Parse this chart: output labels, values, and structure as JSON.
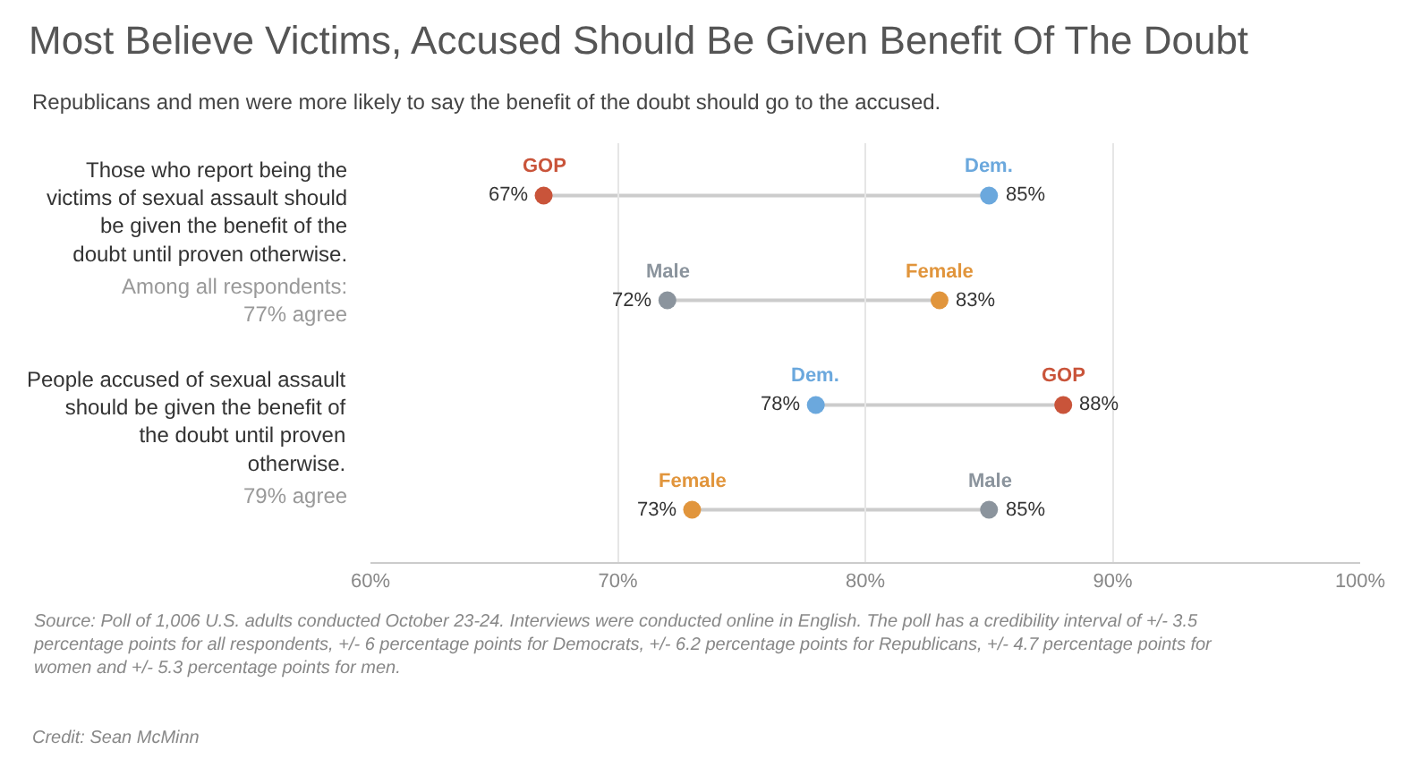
{
  "chart_data": {
    "type": "scatter",
    "title": "Most Believe Victims, Accused Should Be Given Benefit Of The Doubt",
    "subtitle": "Republicans and men were more likely to say the benefit of the doubt should go to the accused.",
    "categories": [
      null,
      null,
      null,
      null
    ],
    "orientation": "horizontal",
    "series": [
      {
        "name": "GOP",
        "color": "#c9543a",
        "values": [
          67,
          null,
          88,
          null
        ],
        "value_labels": [
          "67%",
          null,
          "88%",
          null
        ]
      },
      {
        "name": "Dem.",
        "color": "#6ba8dd",
        "values": [
          85,
          null,
          78,
          null
        ],
        "value_labels": [
          "85%",
          null,
          "78%",
          null
        ]
      },
      {
        "name": "Male",
        "color": "#8b949d",
        "values": [
          null,
          72,
          null,
          85
        ],
        "value_labels": [
          null,
          "72%",
          null,
          "85%"
        ]
      },
      {
        "name": "Female",
        "color": "#e1953c",
        "values": [
          null,
          83,
          null,
          73
        ],
        "value_labels": [
          null,
          "83%",
          null,
          "73%"
        ]
      }
    ],
    "xlim": [
      60,
      100
    ],
    "xticks": [
      {
        "value": 60,
        "label": "60%"
      },
      {
        "value": 70,
        "label": "70%"
      },
      {
        "value": 80,
        "label": "80%"
      },
      {
        "value": 90,
        "label": "90%"
      },
      {
        "value": 100,
        "label": "100%"
      }
    ],
    "grid": "x",
    "legend": false,
    "marker": "circle",
    "annotations": [
      "Those who report being the victims of sexual assault should be given the benefit of the doubt until proven otherwise.",
      "Among all respondents: 77% agree",
      "People accused of sexual assault should be given the benefit of the doubt until proven otherwise.",
      "79% agree",
      "Source: Poll of 1,006 U.S. adults conducted October 23-24. Interviews were conducted online in English. The poll has a credibility interval of +/- 3.5 percentage points for all respondents, +/- 6 percentage points for Democrats, +/- 6.2 percentage points for Republicans, +/- 4.7 percentage points for women and +/- 5.3 percentage points for men.",
      "Credit: Sean McMinn"
    ]
  }
}
